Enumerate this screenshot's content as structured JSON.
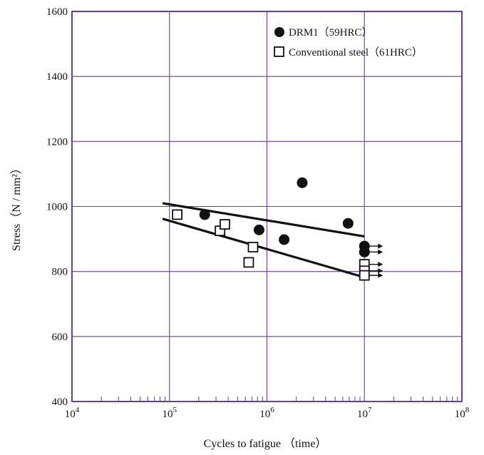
{
  "chart_data": {
    "type": "scatter",
    "title": "",
    "xlabel": "Cycles to fatigue （time）",
    "ylabel": "Stress（N / mm²）",
    "x_scale": "log",
    "xlim": [
      10000,
      100000000
    ],
    "ylim": [
      400,
      1600
    ],
    "x_ticks": [
      {
        "value": 10000,
        "base": "10",
        "exp": "4"
      },
      {
        "value": 100000,
        "base": "10",
        "exp": "5"
      },
      {
        "value": 1000000,
        "base": "10",
        "exp": "6"
      },
      {
        "value": 10000000,
        "base": "10",
        "exp": "7"
      },
      {
        "value": 100000000,
        "base": "10",
        "exp": "8"
      }
    ],
    "y_ticks": [
      "400",
      "600",
      "800",
      "1000",
      "1200",
      "1400",
      "1600"
    ],
    "grid": true,
    "legend_position": "top-right",
    "colors": {
      "frame": "#6a3d96",
      "grid": "#6a3d96",
      "marks": "#111111"
    },
    "series": [
      {
        "name": "DRM1（59HRC）",
        "marker": "filled-circle",
        "points": [
          {
            "x": 230000,
            "y": 975
          },
          {
            "x": 830000,
            "y": 928
          },
          {
            "x": 1500000,
            "y": 898
          },
          {
            "x": 2300000,
            "y": 1073
          },
          {
            "x": 6800000,
            "y": 948
          },
          {
            "x": 10000000,
            "y": 878,
            "runout": true
          },
          {
            "x": 10000000,
            "y": 860,
            "runout": true
          }
        ],
        "fit_line": [
          {
            "x": 85000,
            "y": 1010
          },
          {
            "x": 10000000,
            "y": 908
          }
        ]
      },
      {
        "name": "Conventional steel（61HRC）",
        "marker": "open-square",
        "points": [
          {
            "x": 120000,
            "y": 975
          },
          {
            "x": 330000,
            "y": 925
          },
          {
            "x": 370000,
            "y": 945
          },
          {
            "x": 650000,
            "y": 828
          },
          {
            "x": 720000,
            "y": 875
          },
          {
            "x": 10000000,
            "y": 822,
            "runout": true
          },
          {
            "x": 10000000,
            "y": 802,
            "runout": true
          },
          {
            "x": 10000000,
            "y": 788,
            "runout": true
          }
        ],
        "fit_line": [
          {
            "x": 85000,
            "y": 962
          },
          {
            "x": 10000000,
            "y": 782
          }
        ]
      }
    ]
  }
}
